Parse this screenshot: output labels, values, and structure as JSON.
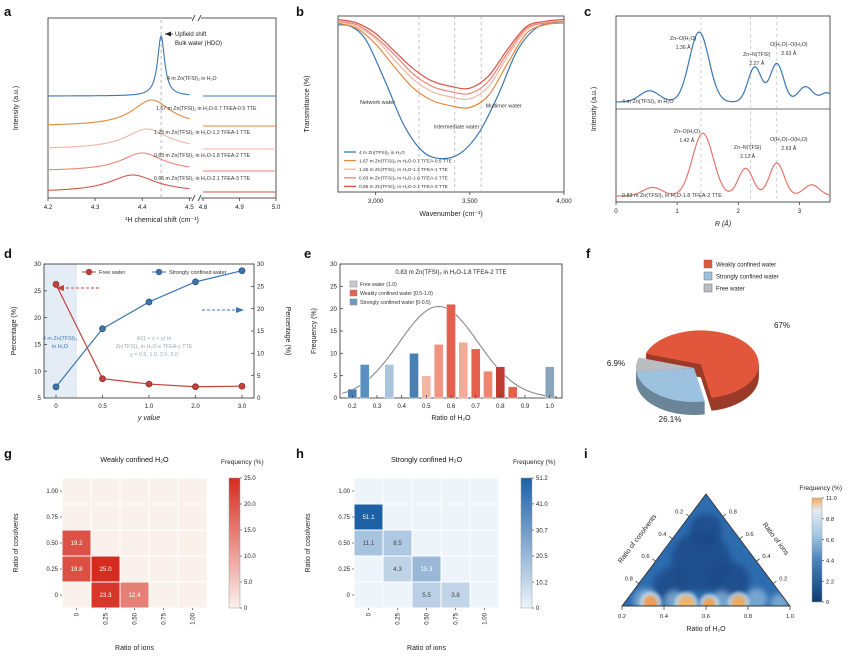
{
  "figure": {
    "background": "#ffffff"
  },
  "chart_data": [
    {
      "panel": "a",
      "type": "line",
      "xlabel": "¹H chemical shift (cm⁻¹)",
      "ylabel": "Intensity (a.u.)",
      "annotation": [
        "Upfield shift",
        "Bulk water (HDO)"
      ],
      "xticks": [
        "4.2",
        "4.3",
        "4.4",
        "4.5",
        "4.8",
        "4.9",
        "5.0"
      ],
      "xtick_values": [
        4.2,
        4.3,
        4.4,
        4.5,
        4.8,
        4.9,
        5.0
      ],
      "dash_x": 4.44,
      "axis_break": true,
      "series": [
        {
          "label": "4 m Zn(TFSI)₂ in H₂O",
          "color": "#3b76b0",
          "peak_center": 4.44,
          "peak_width": 0.009,
          "relative_height": 1.0
        },
        {
          "label": "1.67 m Zn(TFSI)₂ in H₂O-0.7 TFEA-0.5 TTE",
          "color": "#e6893e",
          "peak_center": 4.42,
          "peak_width": 0.05,
          "relative_height": 0.45
        },
        {
          "label": "1.25 m Zn(TFSI)₂ in H₂O-1.2 TFEA-1 TTE",
          "color": "#f2b4a7",
          "peak_center": 4.41,
          "peak_width": 0.055,
          "relative_height": 0.35
        },
        {
          "label": "0.83 m Zn(TFSI)₂ in H₂O-1.8 TFEA-2 TTE",
          "color": "#ec8677",
          "peak_center": 4.4,
          "peak_width": 0.055,
          "relative_height": 0.32
        },
        {
          "label": "0.66 m Zn(TFSI)₂ in H₂O-2.1 TFEA-3 TTE",
          "color": "#d5544a",
          "peak_center": 4.38,
          "peak_width": 0.06,
          "relative_height": 0.3
        }
      ]
    },
    {
      "panel": "b",
      "type": "line",
      "xlabel": "Wavenumber (cm⁻¹)",
      "ylabel": "Transmittance (%)",
      "xticks": [
        "3,000",
        "3,500",
        "4,000"
      ],
      "xtick_values": [
        3000,
        3500,
        4000
      ],
      "xrange": [
        2800,
        4000
      ],
      "dash_lines": [
        3230,
        3420,
        3560
      ],
      "region_labels": [
        {
          "text": "Network water",
          "x": 3010,
          "f": 0.5
        },
        {
          "text": "Intermediate water",
          "x": 3430,
          "f": 0.36
        },
        {
          "text": "Multimer water",
          "x": 3680,
          "f": 0.48
        }
      ],
      "series": [
        {
          "label": "4 m Zn(TFSI)₂ in H₂O",
          "color": "#3b76b0",
          "points": [
            [
              2800,
              0.95
            ],
            [
              2870,
              0.94
            ],
            [
              2950,
              0.86
            ],
            [
              3050,
              0.63
            ],
            [
              3150,
              0.38
            ],
            [
              3250,
              0.23
            ],
            [
              3350,
              0.19
            ],
            [
              3450,
              0.22
            ],
            [
              3550,
              0.34
            ],
            [
              3650,
              0.55
            ],
            [
              3750,
              0.8
            ],
            [
              3850,
              0.93
            ],
            [
              3950,
              0.96
            ],
            [
              4000,
              0.96
            ]
          ]
        },
        {
          "label": "1.67 m Zn(TFSI)₂ in H₂O-0.7 TFEA-0.5 TTE",
          "color": "#e6893e",
          "points": [
            [
              2800,
              0.96
            ],
            [
              2900,
              0.93
            ],
            [
              3000,
              0.84
            ],
            [
              3100,
              0.71
            ],
            [
              3200,
              0.59
            ],
            [
              3300,
              0.52
            ],
            [
              3400,
              0.49
            ],
            [
              3500,
              0.48
            ],
            [
              3600,
              0.55
            ],
            [
              3700,
              0.73
            ],
            [
              3800,
              0.9
            ],
            [
              3900,
              0.95
            ],
            [
              4000,
              0.96
            ]
          ]
        },
        {
          "label": "1.25 m Zn(TFSI)₂ in H₂O-1.2 TFEA-1 TTE",
          "color": "#f2b4a7",
          "points": [
            [
              2800,
              0.97
            ],
            [
              2900,
              0.94
            ],
            [
              3000,
              0.87
            ],
            [
              3100,
              0.75
            ],
            [
              3200,
              0.64
            ],
            [
              3300,
              0.57
            ],
            [
              3400,
              0.54
            ],
            [
              3500,
              0.53
            ],
            [
              3600,
              0.6
            ],
            [
              3700,
              0.77
            ],
            [
              3800,
              0.92
            ],
            [
              3900,
              0.96
            ],
            [
              4000,
              0.97
            ]
          ]
        },
        {
          "label": "0.83 m Zn(TFSI)₂ in H₂O-1.8 TFEA-2 TTE",
          "color": "#ec8677",
          "points": [
            [
              2800,
              0.97
            ],
            [
              2900,
              0.95
            ],
            [
              3000,
              0.88
            ],
            [
              3100,
              0.78
            ],
            [
              3200,
              0.67
            ],
            [
              3300,
              0.6
            ],
            [
              3400,
              0.57
            ],
            [
              3500,
              0.56
            ],
            [
              3600,
              0.63
            ],
            [
              3700,
              0.79
            ],
            [
              3800,
              0.93
            ],
            [
              3900,
              0.96
            ],
            [
              4000,
              0.97
            ]
          ]
        },
        {
          "label": "0.66 m Zn(TFSI)₂ in H₂O-2.1 TFEA-3 TTE",
          "color": "#d5544a",
          "points": [
            [
              2800,
              0.98
            ],
            [
              2900,
              0.96
            ],
            [
              3000,
              0.9
            ],
            [
              3100,
              0.8
            ],
            [
              3200,
              0.7
            ],
            [
              3300,
              0.63
            ],
            [
              3400,
              0.6
            ],
            [
              3500,
              0.59
            ],
            [
              3600,
              0.66
            ],
            [
              3700,
              0.81
            ],
            [
              3800,
              0.94
            ],
            [
              3900,
              0.97
            ],
            [
              4000,
              0.98
            ]
          ]
        }
      ]
    },
    {
      "panel": "c",
      "type": "line",
      "xlabel": "R (Å)",
      "ylabel": "Intensity (a.u.)",
      "xticks": [
        "0",
        "1",
        "2",
        "3"
      ],
      "xtick_values": [
        0,
        1,
        2,
        3
      ],
      "xrange": [
        0,
        3.5
      ],
      "dash_lines": [
        1.39,
        2.2,
        2.63
      ],
      "subplots": [
        {
          "sample": "4 m Zn(TFSI)₂ in H₂O",
          "color": "#3b76b0",
          "peaks": [
            {
              "center": 0.55,
              "amp": 0.16,
              "width": 0.16
            },
            {
              "center": 1.36,
              "amp": 1.0,
              "width": 0.16
            },
            {
              "center": 2.27,
              "amp": 0.5,
              "width": 0.11
            },
            {
              "center": 2.63,
              "amp": 0.55,
              "width": 0.11
            },
            {
              "center": 3.1,
              "amp": 0.22,
              "width": 0.12
            },
            {
              "center": 3.45,
              "amp": 0.13,
              "width": 0.1
            }
          ],
          "annotations": [
            {
              "label": "Zn–O(H₂O)",
              "value": "1.36 Å",
              "r": 1.36
            },
            {
              "label": "Zn–N(TFSI)",
              "value": "2.27 Å",
              "r": 2.27
            },
            {
              "label": "O(H₂O)–O(H₂O)",
              "value": "2.63 Å",
              "r": 2.63
            }
          ]
        },
        {
          "sample": "0.83 m Zn(TFSI)₂ in H₂O-1.8 TFEA-2 TTE",
          "color": "#e4766a",
          "peaks": [
            {
              "center": 0.6,
              "amp": 0.13,
              "width": 0.16
            },
            {
              "center": 1.42,
              "amp": 0.95,
              "width": 0.17
            },
            {
              "center": 2.12,
              "amp": 0.42,
              "width": 0.12
            },
            {
              "center": 2.63,
              "amp": 0.5,
              "width": 0.12
            },
            {
              "center": 3.2,
              "amp": 0.17,
              "width": 0.13
            }
          ],
          "annotations": [
            {
              "label": "Zn–O(H₂O)",
              "value": "1.42 Å",
              "r": 1.42
            },
            {
              "label": "Zn–N(TFSI)",
              "value": "2.12 Å",
              "r": 2.12
            },
            {
              "label": "O(H₂O)–O(H₂O)",
              "value": "2.63 Å",
              "r": 2.63
            }
          ]
        }
      ]
    },
    {
      "panel": "d",
      "type": "line",
      "xlabel": "y value",
      "ylabel_left": "Percentage (%)",
      "ylabel_right": "Percentage (%)",
      "categories": [
        "0",
        "0.5",
        "1.0",
        "2.0",
        "3.0"
      ],
      "yticks_left": [
        5,
        10,
        15,
        20,
        25,
        30
      ],
      "yticks_right": [
        0,
        5,
        10,
        15,
        20,
        25,
        30
      ],
      "ylim_left": [
        5,
        30
      ],
      "ylim_right": [
        0,
        30
      ],
      "series": [
        {
          "label": "Free water",
          "color": "#c5423c",
          "axis": "left",
          "values": [
            26.2,
            8.6,
            7.6,
            7.1,
            7.2
          ]
        },
        {
          "label": "Strongly confined water",
          "color": "#3b76b0",
          "axis": "right",
          "values": [
            2.5,
            15.5,
            21.5,
            26.0,
            28.5
          ]
        }
      ],
      "annotations": {
        "shaded": [
          "4 m Zn(TFSI)₂",
          "in H₂O"
        ],
        "gray": [
          "4/(1 + x + y) m",
          "Zn(TFSI)₂ in H₂O-x TFEA-y TTE",
          "y = 0.5, 1.0, 2.0, 3.0"
        ]
      }
    },
    {
      "panel": "e",
      "type": "bar",
      "title": "0.83 m Zn(TFSI)₂ in H₂O-1.8 TFEA-2 TTE",
      "xlabel": "Ratio of H₂O",
      "ylabel": "Frequency (%)",
      "xticks": [
        "0.2",
        "0.3",
        "0.4",
        "0.5",
        "0.6",
        "0.7",
        "0.8",
        "0.9",
        "1.0"
      ],
      "xtick_values": [
        0.2,
        0.3,
        0.4,
        0.5,
        0.6,
        0.7,
        0.8,
        0.9,
        1.0
      ],
      "yticks": [
        0,
        5,
        10,
        15,
        20,
        25,
        30
      ],
      "ylim": [
        0,
        30
      ],
      "legend": [
        {
          "label": "Free water (1.0)",
          "color": "#c8ccd0"
        },
        {
          "label": "Weakly confined water [0.5-1.0)",
          "color": "#e4604d"
        },
        {
          "label": "Strongly confined water [0-0.5)",
          "color": "#6b9ac4"
        }
      ],
      "bars": [
        {
          "x": 0.2,
          "freq": 2.0,
          "color": "#4a7fb5"
        },
        {
          "x": 0.25,
          "freq": 7.5,
          "color": "#5b8fc0"
        },
        {
          "x": 0.35,
          "freq": 7.5,
          "color": "#a9c5de"
        },
        {
          "x": 0.45,
          "freq": 10.0,
          "color": "#4a7fb5"
        },
        {
          "x": 0.5,
          "freq": 5.0,
          "color": "#f2b6a6"
        },
        {
          "x": 0.55,
          "freq": 12.0,
          "color": "#ee9580"
        },
        {
          "x": 0.6,
          "freq": 21.0,
          "color": "#e4604d"
        },
        {
          "x": 0.65,
          "freq": 12.5,
          "color": "#f2ab99"
        },
        {
          "x": 0.7,
          "freq": 11.0,
          "color": "#e4604d"
        },
        {
          "x": 0.75,
          "freq": 6.0,
          "color": "#ee8570"
        },
        {
          "x": 0.8,
          "freq": 7.0,
          "color": "#bf3a30"
        },
        {
          "x": 0.85,
          "freq": 2.5,
          "color": "#e4604d"
        },
        {
          "x": 1.0,
          "freq": 7.0,
          "color": "#8aa4bc"
        }
      ],
      "gauss": {
        "mu": 0.55,
        "sigma": 0.16,
        "amp": 20.5,
        "color": "#8a8a8a"
      }
    },
    {
      "panel": "f",
      "type": "pie",
      "legend": [
        {
          "label": "Weakly confined water",
          "color": "#e2573b"
        },
        {
          "label": "Strongly confined water",
          "color": "#9cc2df"
        },
        {
          "label": "Free water",
          "color": "#b9bdc1"
        }
      ],
      "slices": [
        {
          "label": "Weakly confined water",
          "pct": 67.0,
          "text": "67%",
          "color": "#e2573b"
        },
        {
          "label": "Free water",
          "pct": 6.9,
          "text": "6.9%",
          "color": "#b9bdc1"
        },
        {
          "label": "Strongly confined water",
          "pct": 26.1,
          "text": "26.1%",
          "color": "#9cc2df"
        }
      ]
    },
    {
      "panel": "g",
      "type": "heatmap",
      "title": "Weakly confined H₂O",
      "cbar_label": "Frequency (%)",
      "xlabel": "Ratio of ions",
      "ylabel": "Ratio of cosolvents",
      "ticks": [
        "0",
        "0.25",
        "0.50",
        "0.75",
        "1.00"
      ],
      "vmax": 25.0,
      "cbar_ticks": [
        "0",
        "5.0",
        "10.0",
        "15.0",
        "20.0",
        "25.0"
      ],
      "cbar_tick_values": [
        0,
        5,
        10,
        15,
        20,
        25
      ],
      "bg": "#fbf1ec",
      "max": "#d62b1f",
      "cells": [
        {
          "x": 0,
          "y": 0.5,
          "v": 19.2
        },
        {
          "x": 0,
          "y": 0.25,
          "v": 19.8
        },
        {
          "x": 0.25,
          "y": 0.25,
          "v": 25.0
        },
        {
          "x": 0.25,
          "y": 0,
          "v": 23.3
        },
        {
          "x": 0.5,
          "y": 0,
          "v": 12.4
        }
      ]
    },
    {
      "panel": "h",
      "type": "heatmap",
      "title": "Strongly confined H₂O",
      "cbar_label": "Frequency (%)",
      "xlabel": "Ratio of ions",
      "ylabel": "Ratio of cosolvents",
      "ticks": [
        "0",
        "0.25",
        "0.50",
        "0.75",
        "1.00"
      ],
      "vmax": 51.2,
      "cbar_ticks": [
        "0",
        "10.2",
        "20.5",
        "30.7",
        "41.0",
        "51.2"
      ],
      "cbar_tick_values": [
        0,
        10.2,
        20.5,
        30.7,
        41.0,
        51.2
      ],
      "bg": "#edf4fa",
      "max": "#1d60a6",
      "cells": [
        {
          "x": 0,
          "y": 0.75,
          "v": 51.1
        },
        {
          "x": 0,
          "y": 0.5,
          "v": 11.1
        },
        {
          "x": 0.25,
          "y": 0.5,
          "v": 8.5
        },
        {
          "x": 0.25,
          "y": 0.25,
          "v": 4.3
        },
        {
          "x": 0.5,
          "y": 0.25,
          "v": 15.3
        },
        {
          "x": 0.5,
          "y": 0,
          "v": 5.5
        },
        {
          "x": 0.75,
          "y": 0,
          "v": 3.8
        }
      ]
    },
    {
      "panel": "i",
      "type": "ternary-contour",
      "cbar_label": "Frequency (%)",
      "vmax": 11.0,
      "cbar_ticks": [
        "11.0",
        "8.8",
        "6.6",
        "4.4",
        "2.2",
        "0"
      ],
      "cbar_tick_values": [
        11.0,
        8.8,
        6.6,
        4.4,
        2.2,
        0
      ],
      "base_color": "#2e6cb0",
      "axes": {
        "bottom": {
          "label": "Ratio of H₂O",
          "ticks": [
            "0.2",
            "0.4",
            "0.6",
            "0.8",
            "1.0"
          ]
        },
        "left": {
          "label": "Ratio of cosolvents",
          "ticks": [
            "0.2",
            "0.4",
            "0.6",
            "0.8"
          ]
        },
        "right": {
          "label": "Ratio of ions",
          "ticks": [
            "0.8",
            "0.6",
            "0.4",
            "0.2"
          ]
        }
      },
      "hotspots": [
        {
          "u": 0.16,
          "v": 0.03,
          "r": 7,
          "color": "#f09a4e"
        },
        {
          "u": 0.38,
          "v": 0.02,
          "r": 8,
          "color": "#f2b266"
        },
        {
          "u": 0.52,
          "v": 0.02,
          "r": 6,
          "color": "#f0a050"
        },
        {
          "u": 0.7,
          "v": 0.03,
          "r": 7,
          "color": "#eeaa5a"
        }
      ],
      "dark_regions": [
        {
          "u": 0.45,
          "v": 0.4,
          "r": 30
        },
        {
          "u": 0.25,
          "v": 0.18,
          "r": 18
        },
        {
          "u": 0.68,
          "v": 0.22,
          "r": 20
        },
        {
          "u": 0.5,
          "v": 0.68,
          "r": 16
        }
      ],
      "light_regions": [
        {
          "u": 0.12,
          "v": 0.05,
          "r": 12
        },
        {
          "u": 0.3,
          "v": 0.05,
          "r": 10
        },
        {
          "u": 0.6,
          "v": 0.05,
          "r": 10
        },
        {
          "u": 0.82,
          "v": 0.06,
          "r": 11
        },
        {
          "u": 0.95,
          "v": 0.03,
          "r": 9
        }
      ]
    }
  ]
}
